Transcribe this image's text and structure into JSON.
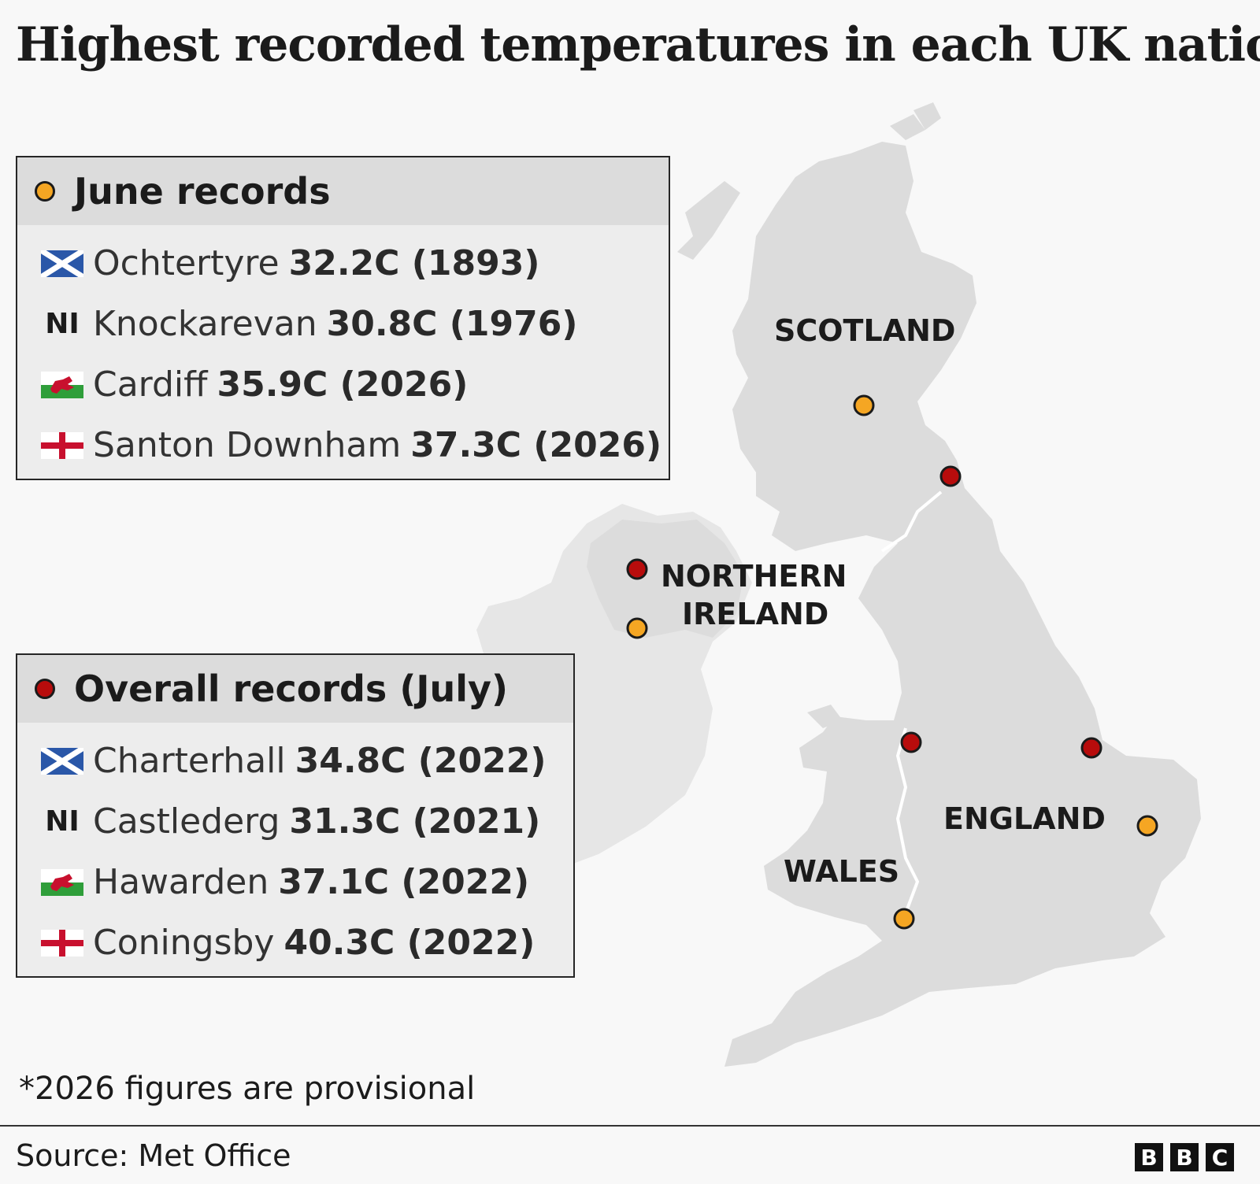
{
  "title": "Highest recorded temperatures in each UK nation",
  "colors": {
    "june": "#f5a623",
    "overall": "#b80c0c",
    "land": "#dcdcdc",
    "ireland": "#e6e6e6"
  },
  "june_panel": {
    "heading": "June records",
    "rows": [
      {
        "flag": "scotland-flag",
        "place": "Ochtertyre",
        "value": "32.2C (1893)"
      },
      {
        "flag": "ni-text",
        "ni_label": "NI",
        "place": "Knockarevan",
        "value": "30.8C (1976)"
      },
      {
        "flag": "wales-flag",
        "place": "Cardiff",
        "value": "35.9C (2026)"
      },
      {
        "flag": "england-flag",
        "place": "Santon Downham",
        "value": "37.3C (2026)"
      }
    ]
  },
  "overall_panel": {
    "heading": "Overall records (July)",
    "rows": [
      {
        "flag": "scotland-flag",
        "place": "Charterhall",
        "value": "34.8C (2022)"
      },
      {
        "flag": "ni-text",
        "ni_label": "NI",
        "place": "Castlederg",
        "value": "31.3C (2021)"
      },
      {
        "flag": "wales-flag",
        "place": "Hawarden",
        "value": "37.1C (2022)"
      },
      {
        "flag": "england-flag",
        "place": "Coningsby",
        "value": "40.3C (2022)"
      }
    ]
  },
  "map_labels": {
    "scotland": "SCOTLAND",
    "ni_line1": "NORTHERN",
    "ni_line2": "IRELAND",
    "england": "ENGLAND",
    "wales": "WALES"
  },
  "footnote": "*2026 figures are provisional",
  "source": "Source: Met Office",
  "logo": [
    "B",
    "B",
    "C"
  ]
}
